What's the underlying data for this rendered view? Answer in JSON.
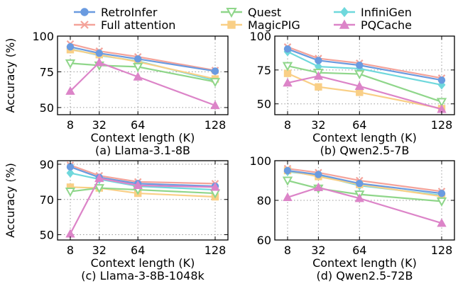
{
  "legend": [
    {
      "name": "RetroInfer",
      "color": "#6a9be0",
      "marker": "circle"
    },
    {
      "name": "Full attention",
      "color": "#f4a39a",
      "marker": "x"
    },
    {
      "name": "Quest",
      "color": "#8fd68a",
      "marker": "tri-down"
    },
    {
      "name": "MagicPIG",
      "color": "#f9cf86",
      "marker": "square"
    },
    {
      "name": "InfiniGen",
      "color": "#6fd8dc",
      "marker": "diamond"
    },
    {
      "name": "PQCache",
      "color": "#dc84c8",
      "marker": "tri-up"
    }
  ],
  "chart_data": [
    {
      "type": "line",
      "caption": "(a) Llama-3.1-8B",
      "xlabel": "Context length (K)",
      "ylabel": "Accuracy (%)",
      "x": [
        8,
        32,
        64,
        128
      ],
      "xticks": [
        "8",
        "32",
        "64",
        "128"
      ],
      "ylim": [
        45,
        100
      ],
      "yticks": [
        50,
        75,
        100
      ],
      "grid": true,
      "series": [
        {
          "name": "Full attention",
          "values": [
            94.5,
            89.5,
            85.5,
            76.0
          ]
        },
        {
          "name": "InfiniGen",
          "values": [
            91.0,
            86.5,
            82.5,
            69.0
          ]
        },
        {
          "name": "MagicPIG",
          "values": [
            90.5,
            87.0,
            82.0,
            70.0
          ]
        },
        {
          "name": "RetroInfer",
          "values": [
            92.5,
            88.0,
            84.0,
            75.5
          ]
        },
        {
          "name": "Quest",
          "values": [
            81.0,
            79.5,
            78.5,
            68.0
          ]
        },
        {
          "name": "PQCache",
          "values": [
            61.5,
            81.5,
            71.5,
            51.5
          ]
        }
      ]
    },
    {
      "type": "line",
      "caption": "(b) Qwen2.5-7B",
      "xlabel": "Context length (K)",
      "ylabel": "",
      "x": [
        8,
        32,
        64,
        128
      ],
      "xticks": [
        "8",
        "32",
        "64",
        "128"
      ],
      "ylim": [
        42,
        100
      ],
      "yticks": [
        50,
        75,
        100
      ],
      "grid": true,
      "series": [
        {
          "name": "Full attention",
          "values": [
            92.0,
            83.5,
            80.0,
            69.0
          ]
        },
        {
          "name": "InfiniGen",
          "values": [
            88.5,
            77.5,
            76.0,
            64.0
          ]
        },
        {
          "name": "MagicPIG",
          "values": [
            72.5,
            62.5,
            58.5,
            46.5
          ]
        },
        {
          "name": "RetroInfer",
          "values": [
            90.5,
            82.0,
            78.5,
            67.5
          ]
        },
        {
          "name": "Quest",
          "values": [
            78.0,
            73.0,
            72.0,
            51.5
          ]
        },
        {
          "name": "PQCache",
          "values": [
            65.5,
            70.5,
            63.0,
            46.0
          ]
        }
      ]
    },
    {
      "type": "line",
      "caption": "(c) Llama-3-8B-1048k",
      "xlabel": "Context length (K)",
      "ylabel": "Accuracy (%)",
      "x": [
        8,
        32,
        64,
        128
      ],
      "xticks": [
        "8",
        "32",
        "64",
        "128"
      ],
      "ylim": [
        47,
        92
      ],
      "yticks": [
        50,
        70,
        90
      ],
      "grid": true,
      "series": [
        {
          "name": "Full attention",
          "values": [
            89.5,
            83.5,
            80.0,
            79.0
          ]
        },
        {
          "name": "InfiniGen",
          "values": [
            85.0,
            81.5,
            77.5,
            75.5
          ]
        },
        {
          "name": "MagicPIG",
          "values": [
            77.0,
            76.5,
            73.5,
            71.5
          ]
        },
        {
          "name": "RetroInfer",
          "values": [
            88.5,
            82.5,
            79.0,
            77.5
          ]
        },
        {
          "name": "Quest",
          "values": [
            74.5,
            76.5,
            75.5,
            73.5
          ]
        },
        {
          "name": "PQCache",
          "values": [
            50.5,
            82.0,
            78.0,
            77.0
          ]
        }
      ]
    },
    {
      "type": "line",
      "caption": "(d) Qwen2.5-72B",
      "xlabel": "Context length (K)",
      "ylabel": "",
      "x": [
        8,
        32,
        64,
        128
      ],
      "xticks": [
        "8",
        "32",
        "64",
        "128"
      ],
      "ylim": [
        60,
        100
      ],
      "yticks": [
        60,
        80,
        100
      ],
      "grid": true,
      "series": [
        {
          "name": "Full attention",
          "values": [
            96.0,
            94.0,
            90.0,
            84.5
          ]
        },
        {
          "name": "InfiniGen",
          "values": [
            94.5,
            92.5,
            87.5,
            82.5
          ]
        },
        {
          "name": "MagicPIG",
          "values": [
            95.0,
            92.0,
            88.0,
            82.0
          ]
        },
        {
          "name": "RetroInfer",
          "values": [
            95.0,
            93.0,
            88.5,
            83.5
          ]
        },
        {
          "name": "Quest",
          "values": [
            90.0,
            86.0,
            83.0,
            79.5
          ]
        },
        {
          "name": "PQCache",
          "values": [
            81.5,
            86.5,
            81.0,
            68.5
          ]
        }
      ]
    }
  ]
}
